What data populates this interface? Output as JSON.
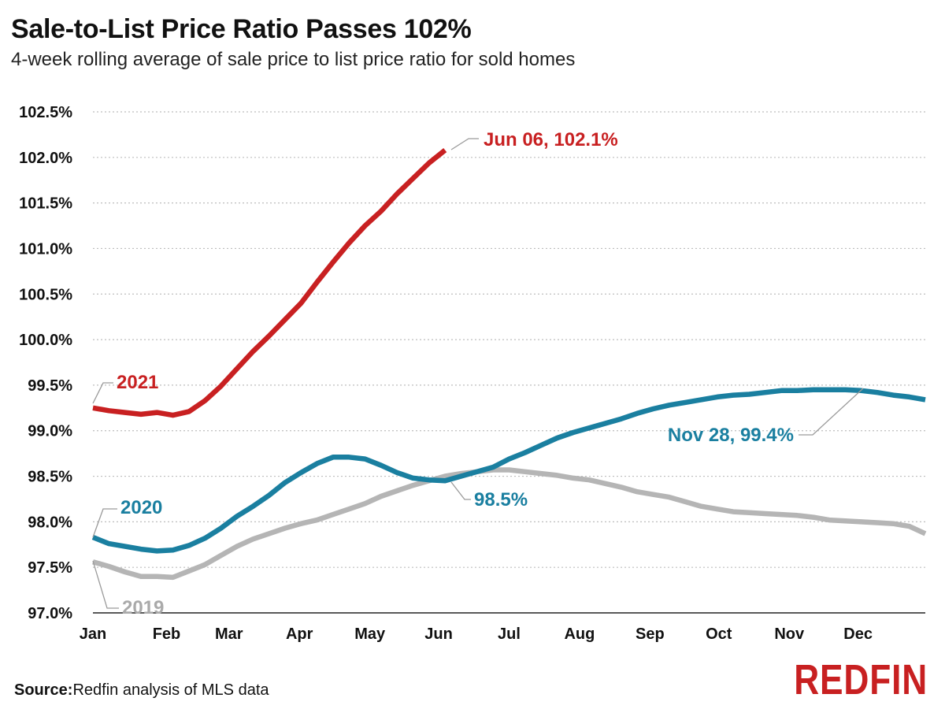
{
  "header": {
    "title": "Sale-to-List Price Ratio Passes 102%",
    "subtitle": "4-week rolling average of sale price to list price ratio for sold homes"
  },
  "footer": {
    "source_label": "Source:",
    "source_text": "Redfin analysis of MLS data",
    "logo": "REDFIN"
  },
  "colors": {
    "s2021": "#c82021",
    "s2020": "#1a7fa0",
    "s2019": "#b5b5b5",
    "grid": "#bdbdbd",
    "axis": "#222222",
    "brand": "#c82021"
  },
  "chart_data": {
    "type": "line",
    "x_unit": "week of year (1 = first week of January)",
    "x_range": [
      1,
      53
    ],
    "ylim": [
      97.0,
      102.5
    ],
    "grid": "horizontal dotted",
    "y_ticks": [
      {
        "value": 97.0,
        "label": "97.0%"
      },
      {
        "value": 97.5,
        "label": "97.5%"
      },
      {
        "value": 98.0,
        "label": "98.0%"
      },
      {
        "value": 98.5,
        "label": "98.5%"
      },
      {
        "value": 99.0,
        "label": "99.0%"
      },
      {
        "value": 99.5,
        "label": "99.5%"
      },
      {
        "value": 100.0,
        "label": "100.0%"
      },
      {
        "value": 100.5,
        "label": "100.5%"
      },
      {
        "value": 101.0,
        "label": "101.0%"
      },
      {
        "value": 101.5,
        "label": "101.5%"
      },
      {
        "value": 102.0,
        "label": "102.0%"
      },
      {
        "value": 102.5,
        "label": "102.5%"
      }
    ],
    "x_ticks": [
      {
        "week": 1,
        "label": "Jan"
      },
      {
        "week": 5.6,
        "label": "Feb"
      },
      {
        "week": 9.5,
        "label": "Mar"
      },
      {
        "week": 13.9,
        "label": "Apr"
      },
      {
        "week": 18.3,
        "label": "May"
      },
      {
        "week": 22.6,
        "label": "Jun"
      },
      {
        "week": 27.0,
        "label": "Jul"
      },
      {
        "week": 31.4,
        "label": "Aug"
      },
      {
        "week": 35.8,
        "label": "Sep"
      },
      {
        "week": 40.1,
        "label": "Oct"
      },
      {
        "week": 44.5,
        "label": "Nov"
      },
      {
        "week": 48.8,
        "label": "Dec"
      }
    ],
    "series": [
      {
        "name": "2019",
        "color_key": "s2019",
        "values": [
          97.56,
          97.51,
          97.45,
          97.4,
          97.4,
          97.39,
          97.46,
          97.53,
          97.63,
          97.73,
          97.81,
          97.87,
          97.93,
          97.98,
          98.02,
          98.08,
          98.14,
          98.2,
          98.28,
          98.34,
          98.4,
          98.45,
          98.5,
          98.53,
          98.55,
          98.57,
          98.57,
          98.55,
          98.53,
          98.51,
          98.48,
          98.46,
          98.42,
          98.38,
          98.33,
          98.3,
          98.27,
          98.22,
          98.17,
          98.14,
          98.11,
          98.1,
          98.09,
          98.08,
          98.07,
          98.05,
          98.02,
          98.01,
          98.0,
          97.99,
          97.98,
          97.95,
          97.87
        ]
      },
      {
        "name": "2020",
        "color_key": "s2020",
        "values": [
          97.83,
          97.76,
          97.73,
          97.7,
          97.68,
          97.69,
          97.74,
          97.82,
          97.93,
          98.06,
          98.17,
          98.29,
          98.43,
          98.54,
          98.64,
          98.71,
          98.71,
          98.69,
          98.62,
          98.54,
          98.48,
          98.46,
          98.45,
          98.5,
          98.55,
          98.6,
          98.69,
          98.76,
          98.84,
          98.92,
          98.98,
          99.03,
          99.08,
          99.13,
          99.19,
          99.24,
          99.28,
          99.31,
          99.34,
          99.37,
          99.39,
          99.4,
          99.42,
          99.44,
          99.44,
          99.45,
          99.45,
          99.45,
          99.44,
          99.42,
          99.39,
          99.37,
          99.34
        ]
      },
      {
        "name": "2021",
        "color_key": "s2021",
        "values": [
          99.25,
          99.22,
          99.2,
          99.18,
          99.2,
          99.17,
          99.21,
          99.33,
          99.49,
          99.68,
          99.87,
          100.04,
          100.22,
          100.4,
          100.63,
          100.85,
          101.06,
          101.25,
          101.41,
          101.6,
          101.77,
          101.94,
          102.08
        ]
      }
    ],
    "annotations": [
      {
        "series": "2021",
        "text": "2021",
        "week": 1
      },
      {
        "series": "2020",
        "text": "2020",
        "week": 1
      },
      {
        "series": "2019",
        "text": "2019",
        "week": 1
      },
      {
        "series": "2021",
        "text": "Jun 06, 102.1%",
        "week": 23,
        "value": 102.1
      },
      {
        "series": "2020",
        "text": "98.5%",
        "week": 23,
        "value": 98.5
      },
      {
        "series": "2020",
        "text": "Nov 28, 99.4%",
        "week": 48,
        "value": 99.4
      }
    ]
  }
}
